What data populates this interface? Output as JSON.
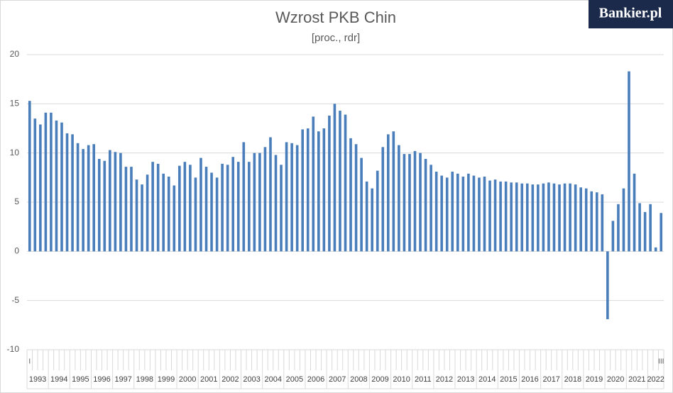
{
  "chart_data": {
    "type": "bar",
    "title": "Wzrost PKB Chin",
    "subtitle": "[proc., rdr]",
    "logo": "Bankier.pl",
    "color": "#4a7ebb",
    "grid": true,
    "ylim": [
      -10,
      20
    ],
    "yticks": [
      -10,
      -5,
      0,
      5,
      10,
      15,
      20
    ],
    "categories": [
      "I",
      null,
      null,
      null,
      null,
      null,
      null,
      null,
      null,
      null,
      null,
      null,
      null,
      null,
      null,
      null,
      null,
      null,
      null,
      null,
      null,
      null,
      null,
      null,
      null,
      null,
      null,
      null,
      null,
      null,
      null,
      null,
      null,
      null,
      null,
      null,
      null,
      null,
      null,
      null,
      null,
      null,
      null,
      null,
      null,
      null,
      null,
      null,
      null,
      null,
      null,
      null,
      null,
      null,
      null,
      null,
      null,
      null,
      null,
      null,
      null,
      null,
      null,
      null,
      null,
      null,
      null,
      null,
      null,
      null,
      null,
      null,
      null,
      null,
      null,
      null,
      null,
      null,
      null,
      null,
      null,
      null,
      null,
      null,
      null,
      null,
      null,
      null,
      null,
      null,
      null,
      null,
      null,
      null,
      null,
      null,
      null,
      null,
      null,
      null,
      null,
      null,
      null,
      null,
      null,
      null,
      null,
      null,
      null,
      null,
      null,
      null,
      null,
      null,
      null,
      null,
      null,
      null,
      "III"
    ],
    "groups": [
      "1993",
      "1994",
      "1995",
      "1996",
      "1997",
      "1998",
      "1999",
      "2000",
      "2001",
      "2002",
      "2003",
      "2004",
      "2005",
      "2006",
      "2007",
      "2008",
      "2009",
      "2010",
      "2011",
      "2012",
      "2013",
      "2014",
      "2015",
      "2016",
      "2017",
      "2018",
      "2019",
      "2020",
      "2021",
      "2022"
    ],
    "values": [
      15.3,
      13.5,
      12.9,
      14.1,
      14.1,
      13.3,
      13.1,
      12.0,
      11.9,
      11.0,
      10.4,
      10.8,
      10.9,
      9.4,
      9.2,
      10.3,
      10.1,
      10.0,
      8.6,
      8.6,
      7.3,
      6.8,
      7.8,
      9.1,
      8.9,
      7.9,
      7.6,
      6.7,
      8.7,
      9.1,
      8.8,
      7.5,
      9.5,
      8.6,
      8.0,
      7.5,
      8.9,
      8.8,
      9.6,
      9.1,
      11.1,
      9.1,
      10.0,
      10.0,
      10.6,
      11.6,
      9.8,
      8.8,
      11.1,
      11.0,
      10.8,
      12.4,
      12.5,
      13.7,
      12.2,
      12.5,
      13.8,
      15.0,
      14.3,
      13.9,
      11.5,
      10.9,
      9.5,
      7.1,
      6.4,
      8.2,
      10.6,
      11.9,
      12.2,
      10.8,
      9.9,
      9.9,
      10.2,
      10.0,
      9.4,
      8.8,
      8.1,
      7.7,
      7.5,
      8.1,
      7.9,
      7.6,
      7.9,
      7.7,
      7.5,
      7.6,
      7.2,
      7.3,
      7.1,
      7.1,
      7.0,
      7.0,
      6.9,
      6.9,
      6.8,
      6.8,
      6.9,
      7.0,
      6.9,
      6.8,
      6.9,
      6.9,
      6.8,
      6.5,
      6.4,
      6.1,
      6.0,
      5.8,
      -6.9,
      3.1,
      4.8,
      6.4,
      18.3,
      7.9,
      4.9,
      4.0,
      4.8,
      0.4,
      3.9
    ]
  }
}
